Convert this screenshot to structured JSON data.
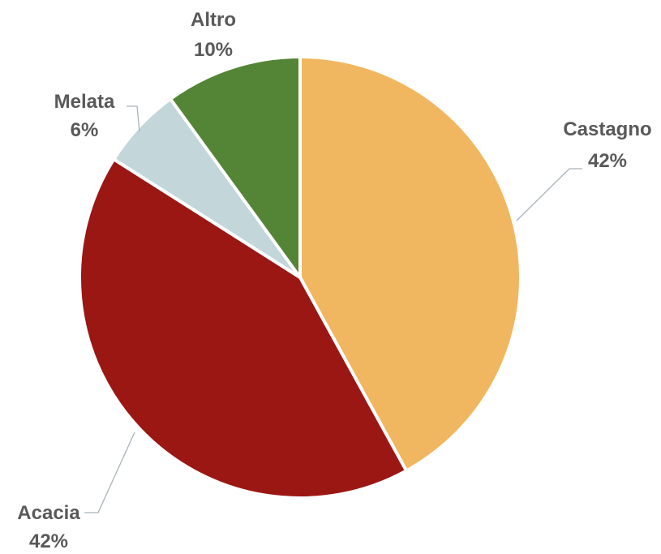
{
  "chart_data": {
    "type": "pie",
    "categories": [
      "Castagno",
      "Acacia",
      "Melata",
      "Altro"
    ],
    "values": [
      42,
      42,
      6,
      10
    ],
    "value_labels": [
      "42%",
      "42%",
      "6%",
      "10%"
    ],
    "colors": [
      "#F0B660",
      "#9B1714",
      "#C3D6DA",
      "#548536"
    ],
    "legend": "none",
    "data_labels": "outside with leader lines"
  }
}
